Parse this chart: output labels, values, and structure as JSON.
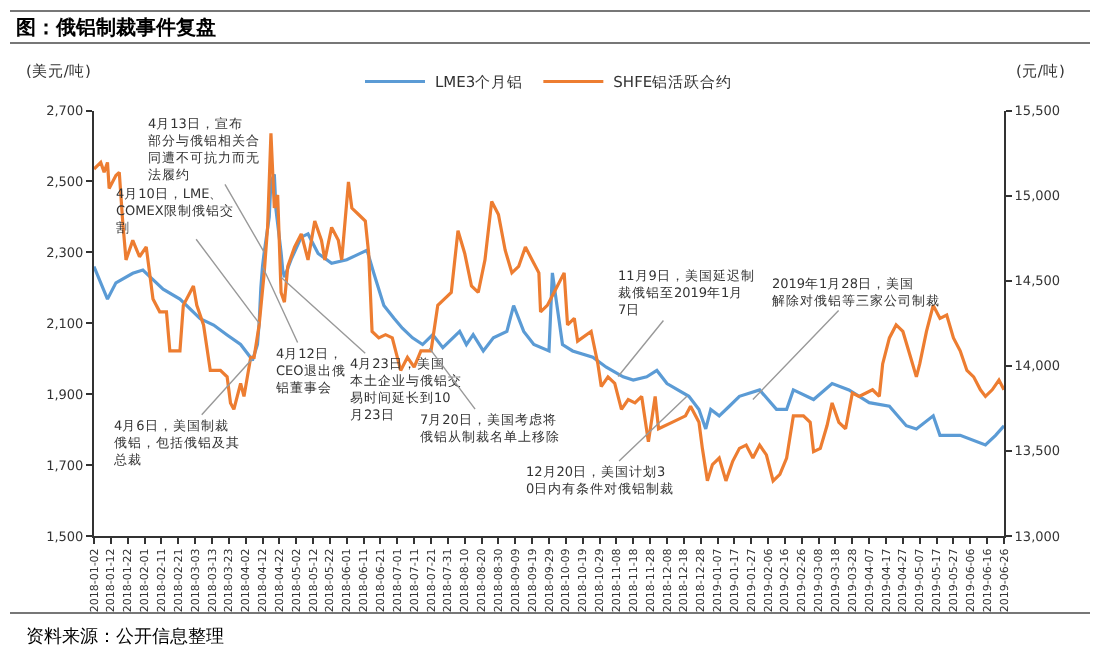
{
  "chart_data": {
    "type": "line",
    "title": "图：俄铝制裁事件复盘",
    "ylabel": "(美元/吨)",
    "y2label": "(元/吨)",
    "legend": "top",
    "grid": false,
    "marker": "none",
    "line_style": "solid",
    "xlim": [
      "2018-01-02",
      "2019-06-26"
    ],
    "xticks": [
      "2018-01-02",
      "2018-01-12",
      "2018-01-22",
      "2018-02-01",
      "2018-02-11",
      "2018-02-21",
      "2018-03-03",
      "2018-03-13",
      "2018-03-23",
      "2018-04-02",
      "2018-04-12",
      "2018-04-22",
      "2018-05-02",
      "2018-05-12",
      "2018-05-22",
      "2018-06-01",
      "2018-06-11",
      "2018-06-21",
      "2018-07-01",
      "2018-07-11",
      "2018-07-21",
      "2018-07-31",
      "2018-08-10",
      "2018-08-20",
      "2018-08-30",
      "2018-09-09",
      "2018-09-19",
      "2018-09-29",
      "2018-10-09",
      "2018-10-19",
      "2018-10-29",
      "2018-11-08",
      "2018-11-18",
      "2018-11-28",
      "2018-12-08",
      "2018-12-18",
      "2018-12-28",
      "2019-01-07",
      "2019-01-17",
      "2019-01-27",
      "2019-02-06",
      "2019-02-16",
      "2019-02-26",
      "2019-03-08",
      "2019-03-18",
      "2019-03-28",
      "2019-04-07",
      "2019-04-17",
      "2019-04-27",
      "2019-05-07",
      "2019-05-17",
      "2019-05-27",
      "2019-06-06",
      "2019-06-16",
      "2019-06-26"
    ],
    "ylim": [
      1500,
      2700
    ],
    "yticks": [
      {
        "value": 1500,
        "label": "1,500"
      },
      {
        "value": 1700,
        "label": "1,700"
      },
      {
        "value": 1900,
        "label": "1,900"
      },
      {
        "value": 2100,
        "label": "2,100"
      },
      {
        "value": 2300,
        "label": "2,300"
      },
      {
        "value": 2500,
        "label": "2,500"
      },
      {
        "value": 2700,
        "label": "2,700"
      }
    ],
    "y2lim": [
      13000,
      15500
    ],
    "y2ticks": [
      {
        "value": 13000,
        "label": "13,000"
      },
      {
        "value": 13500,
        "label": "13,500"
      },
      {
        "value": 14000,
        "label": "14,000"
      },
      {
        "value": 14500,
        "label": "14,500"
      },
      {
        "value": 15000,
        "label": "15,000"
      },
      {
        "value": 15500,
        "label": "15,500"
      }
    ],
    "series": [
      {
        "name": "LME3个月铝",
        "color": "#5b9bd5",
        "x": [
          "2018-01-02",
          "2018-01-10",
          "2018-01-15",
          "2018-01-25",
          "2018-01-31",
          "2018-02-06",
          "2018-02-12",
          "2018-02-22",
          "2018-03-06",
          "2018-03-14",
          "2018-03-22",
          "2018-03-30",
          "2018-04-05",
          "2018-04-06",
          "2018-04-09",
          "2018-04-10",
          "2018-04-11",
          "2018-04-12",
          "2018-04-13",
          "2018-04-16",
          "2018-04-17",
          "2018-04-19",
          "2018-04-20",
          "2018-04-23",
          "2018-04-24",
          "2018-04-25",
          "2018-04-29",
          "2018-05-05",
          "2018-05-09",
          "2018-05-15",
          "2018-05-23",
          "2018-06-01",
          "2018-06-09",
          "2018-06-13",
          "2018-06-17",
          "2018-06-23",
          "2018-06-29",
          "2018-07-04",
          "2018-07-10",
          "2018-07-16",
          "2018-07-22",
          "2018-07-28",
          "2018-08-07",
          "2018-08-11",
          "2018-08-15",
          "2018-08-21",
          "2018-08-27",
          "2018-09-04",
          "2018-09-08",
          "2018-09-14",
          "2018-09-20",
          "2018-09-29",
          "2018-10-01",
          "2018-10-07",
          "2018-10-13",
          "2018-10-25",
          "2018-11-02",
          "2018-11-12",
          "2018-11-18",
          "2018-11-26",
          "2018-12-02",
          "2018-12-08",
          "2018-12-21",
          "2018-12-27",
          "2018-12-31",
          "2019-01-03",
          "2019-01-08",
          "2019-01-14",
          "2019-01-20",
          "2019-02-01",
          "2019-02-11",
          "2019-02-17",
          "2019-02-21",
          "2019-03-05",
          "2019-03-16",
          "2019-03-26",
          "2019-04-07",
          "2019-04-19",
          "2019-04-29",
          "2019-05-05",
          "2019-05-15",
          "2019-05-19",
          "2019-05-31",
          "2019-06-15",
          "2019-06-21",
          "2019-06-26"
        ],
        "values": [
          2260,
          2168,
          2214,
          2241,
          2250,
          2223,
          2196,
          2168,
          2113,
          2095,
          2067,
          2040,
          2003,
          1995,
          2040,
          2100,
          2200,
          2260,
          2300,
          2400,
          2500,
          2520,
          2420,
          2300,
          2250,
          2230,
          2280,
          2343,
          2352,
          2297,
          2269,
          2279,
          2297,
          2306,
          2242,
          2150,
          2114,
          2086,
          2059,
          2040,
          2068,
          2031,
          2077,
          2040,
          2068,
          2022,
          2059,
          2077,
          2150,
          2077,
          2040,
          2022,
          2242,
          2040,
          2022,
          2004,
          1976,
          1949,
          1940,
          1949,
          1967,
          1930,
          1894,
          1857,
          1802,
          1857,
          1839,
          1866,
          1894,
          1912,
          1857,
          1857,
          1912,
          1885,
          1930,
          1912,
          1876,
          1866,
          1811,
          1802,
          1839,
          1784,
          1784,
          1757,
          1784,
          1811
        ]
      },
      {
        "name": "SHFE铝活跃合约",
        "color": "#ed7d31",
        "axis": "y2",
        "x": [
          "2018-01-02",
          "2018-01-06",
          "2018-01-08",
          "2018-01-10",
          "2018-01-11",
          "2018-01-15",
          "2018-01-17",
          "2018-01-19",
          "2018-01-21",
          "2018-01-25",
          "2018-01-29",
          "2018-02-02",
          "2018-02-06",
          "2018-02-10",
          "2018-02-14",
          "2018-02-16",
          "2018-02-22",
          "2018-02-24",
          "2018-03-02",
          "2018-03-04",
          "2018-03-08",
          "2018-03-12",
          "2018-03-18",
          "2018-03-22",
          "2018-03-24",
          "2018-03-26",
          "2018-03-30",
          "2018-04-01",
          "2018-04-05",
          "2018-04-07",
          "2018-04-10",
          "2018-04-13",
          "2018-04-15",
          "2018-04-17",
          "2018-04-19",
          "2018-04-21",
          "2018-04-23",
          "2018-04-25",
          "2018-04-27",
          "2018-05-01",
          "2018-05-05",
          "2018-05-09",
          "2018-05-13",
          "2018-05-17",
          "2018-05-19",
          "2018-05-23",
          "2018-05-27",
          "2018-05-29",
          "2018-06-02",
          "2018-06-04",
          "2018-06-08",
          "2018-06-12",
          "2018-06-14",
          "2018-06-16",
          "2018-06-20",
          "2018-06-24",
          "2018-06-28",
          "2018-07-01",
          "2018-07-03",
          "2018-07-07",
          "2018-07-11",
          "2018-07-15",
          "2018-07-21",
          "2018-07-25",
          "2018-07-29",
          "2018-08-02",
          "2018-08-06",
          "2018-08-10",
          "2018-08-14",
          "2018-08-18",
          "2018-08-22",
          "2018-08-26",
          "2018-08-30",
          "2018-09-03",
          "2018-09-07",
          "2018-09-11",
          "2018-09-15",
          "2018-09-19",
          "2018-09-23",
          "2018-09-24",
          "2018-09-28",
          "2018-10-02",
          "2018-10-08",
          "2018-10-10",
          "2018-10-14",
          "2018-10-16",
          "2018-10-24",
          "2018-10-28",
          "2018-10-30",
          "2018-11-03",
          "2018-11-07",
          "2018-11-11",
          "2018-11-15",
          "2018-11-19",
          "2018-11-23",
          "2018-11-27",
          "2018-12-01",
          "2018-12-03",
          "2018-12-11",
          "2018-12-19",
          "2018-12-22",
          "2018-12-27",
          "2018-12-29",
          "2019-01-01",
          "2019-01-04",
          "2019-01-08",
          "2019-01-12",
          "2019-01-16",
          "2019-01-20",
          "2019-01-24",
          "2019-01-28",
          "2019-02-01",
          "2019-02-05",
          "2019-02-09",
          "2019-02-13",
          "2019-02-17",
          "2019-02-21",
          "2019-02-27",
          "2019-03-03",
          "2019-03-05",
          "2019-03-09",
          "2019-03-13",
          "2019-03-16",
          "2019-03-20",
          "2019-03-24",
          "2019-03-28",
          "2019-04-01",
          "2019-04-09",
          "2019-04-13",
          "2019-04-15",
          "2019-04-19",
          "2019-04-23",
          "2019-04-27",
          "2019-05-01",
          "2019-05-05",
          "2019-05-07",
          "2019-05-11",
          "2019-05-15",
          "2019-05-19",
          "2019-05-23",
          "2019-05-27",
          "2019-05-31",
          "2019-06-04",
          "2019-06-08",
          "2019-06-12",
          "2019-06-15",
          "2019-06-19",
          "2019-06-23",
          "2019-06-26"
        ],
        "values": [
          15156,
          15195,
          15137,
          15195,
          15042,
          15118,
          15137,
          14851,
          14622,
          14737,
          14641,
          14698,
          14393,
          14317,
          14317,
          14088,
          14088,
          14355,
          14469,
          14355,
          14240,
          13973,
          13973,
          13935,
          13782,
          13744,
          13897,
          13820,
          14050,
          14050,
          14240,
          14546,
          14813,
          15366,
          14927,
          15004,
          14431,
          14374,
          14584,
          14698,
          14775,
          14622,
          14851,
          14737,
          14622,
          14813,
          14737,
          14622,
          15080,
          14927,
          14889,
          14851,
          14660,
          14202,
          14164,
          14183,
          14164,
          14050,
          13973,
          14050,
          13992,
          14088,
          14088,
          14355,
          14393,
          14431,
          14794,
          14660,
          14469,
          14431,
          14622,
          14966,
          14889,
          14679,
          14546,
          14584,
          14698,
          14622,
          14546,
          14317,
          14355,
          14431,
          14546,
          14240,
          14279,
          14145,
          14202,
          14011,
          13878,
          13935,
          13897,
          13744,
          13802,
          13782,
          13820,
          13553,
          13820,
          13630,
          13668,
          13706,
          13763,
          13668,
          13515,
          13324,
          13420,
          13458,
          13324,
          13439,
          13515,
          13534,
          13458,
          13534,
          13477,
          13324,
          13362,
          13458,
          13706,
          13706,
          13668,
          13496,
          13515,
          13649,
          13782,
          13668,
          13630,
          13840,
          13820,
          13859,
          13820,
          14011,
          14164,
          14240,
          14202,
          14069,
          13935,
          14011,
          14202,
          14355,
          14279,
          14298,
          14164,
          14088,
          13973,
          13935,
          13859,
          13820,
          13859,
          13916,
          13859
        ]
      }
    ],
    "annotations": [
      {
        "text": "4月6日，美国制裁俄铝，包括俄铝及其总裁",
        "x": "2018-04-06",
        "y": 2000
      },
      {
        "text": "4月10日，LME、COMEX限制俄铝交割",
        "x": "2018-04-10",
        "y": 2100
      },
      {
        "text": "4月12日，CEO退出俄铝董事会",
        "x": "2018-04-12",
        "y": 2260
      },
      {
        "text": "4月13日，宣布部分与俄铝相关合同遭不可抗力而无法履约",
        "x": "2018-04-13",
        "y": 2300
      },
      {
        "text": "4月23日，美国本土企业与俄铝交易时间延长到10月23日",
        "x": "2018-04-23",
        "y": 2230
      },
      {
        "text": "7月20日，美国考虑将俄铝从制裁名单上移除",
        "x": "2018-07-20",
        "y": 2030
      },
      {
        "text": "11月9日，美国延迟制裁俄铝至2019年1月7日",
        "x": "2018-11-09",
        "y": 1950
      },
      {
        "text": "12月20日，美国计划30日内有条件对俄铝制裁",
        "x": "2018-12-20",
        "y": 1895
      },
      {
        "text": "2019年1月28日，美国解除对俄铝等三家公司制裁",
        "x": "2019-01-28",
        "y": 1885
      },
      "资料来源：公开信息整理"
    ]
  }
}
